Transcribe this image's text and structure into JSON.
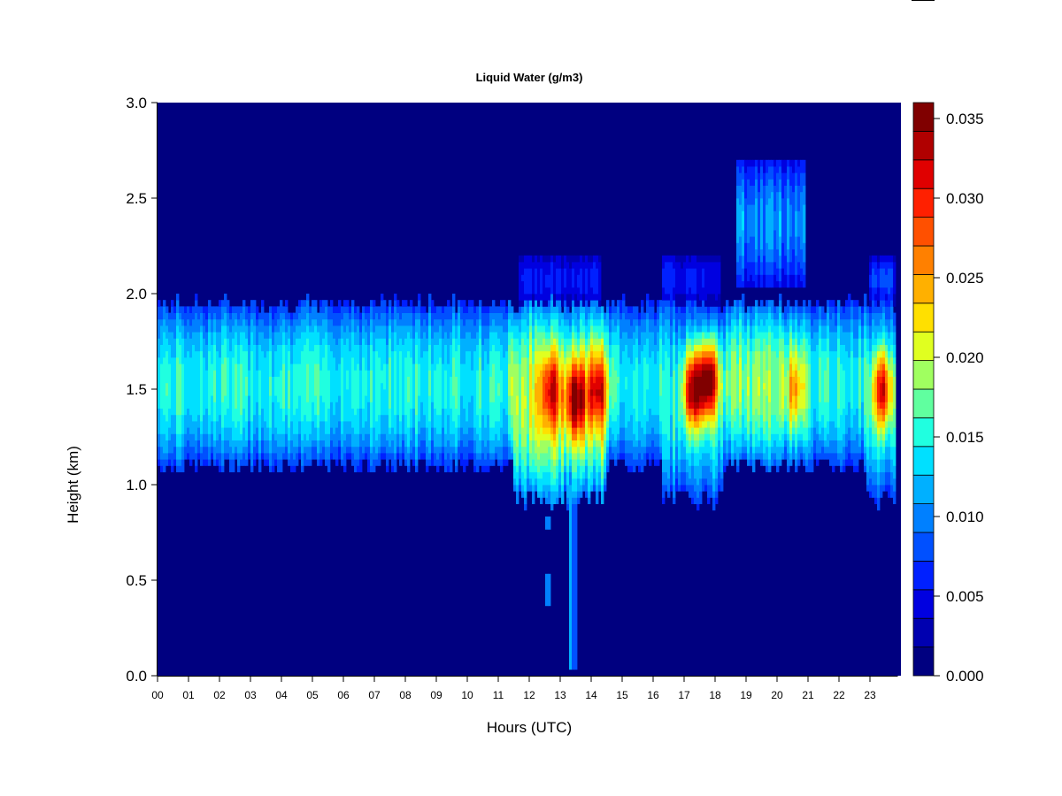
{
  "chart_data": {
    "type": "heatmap",
    "title": "Liquid Water (g/m3)",
    "xlabel": "Hours (UTC)",
    "ylabel": "Height (km)",
    "xlim": [
      0,
      24
    ],
    "ylim": [
      0.0,
      3.0
    ],
    "x_ticks": [
      "00",
      "01",
      "02",
      "03",
      "04",
      "05",
      "06",
      "07",
      "08",
      "09",
      "10",
      "11",
      "12",
      "13",
      "14",
      "15",
      "16",
      "17",
      "18",
      "19",
      "20",
      "21",
      "22",
      "23"
    ],
    "y_ticks": [
      "0.0",
      "0.5",
      "1.0",
      "1.5",
      "2.0",
      "2.5",
      "3.0"
    ],
    "colorbar": {
      "range": [
        0.0,
        0.036
      ],
      "tick_values": [
        0.0,
        0.005,
        0.01,
        0.015,
        0.02,
        0.025,
        0.03,
        0.035
      ],
      "tick_labels": [
        "0.000",
        "0.005",
        "0.010",
        "0.015",
        "0.020",
        "0.025",
        "0.030",
        "0.035"
      ],
      "colors": [
        "#000080",
        "#0000b0",
        "#0000e0",
        "#0020ff",
        "#0050ff",
        "#0080ff",
        "#00b0ff",
        "#00e0ff",
        "#20ffe0",
        "#60ff9f",
        "#a0ff60",
        "#e0ff20",
        "#ffe000",
        "#ffb000",
        "#ff8000",
        "#ff5000",
        "#ff2000",
        "#e00000",
        "#b00000",
        "#800000"
      ]
    },
    "cloud_layers": [
      {
        "name": "main",
        "start_hour": 0.0,
        "end_hour": 23.8,
        "base_km": 1.1,
        "top_km": 1.95,
        "peak_km": 1.5,
        "lwc_peak": 0.015
      },
      {
        "name": "upper",
        "start_hour": 11.7,
        "end_hour": 14.3,
        "base_km": 1.95,
        "top_km": 2.2,
        "lwc_peak": 0.006
      },
      {
        "name": "upper",
        "start_hour": 16.3,
        "end_hour": 18.2,
        "base_km": 1.95,
        "top_km": 2.2,
        "lwc_peak": 0.006
      },
      {
        "name": "upper",
        "start_hour": 18.7,
        "end_hour": 20.9,
        "base_km": 2.05,
        "top_km": 2.7,
        "lwc_peak": 0.011
      },
      {
        "name": "upper",
        "start_hour": 23.0,
        "end_hour": 23.8,
        "base_km": 1.95,
        "top_km": 2.2,
        "lwc_peak": 0.007
      }
    ],
    "maxima": [
      {
        "hour": 12.7,
        "height_km": 1.5,
        "lwc": 0.027
      },
      {
        "hour": 13.5,
        "height_km": 1.45,
        "lwc": 0.032
      },
      {
        "hour": 14.2,
        "height_km": 1.5,
        "lwc": 0.028
      },
      {
        "hour": 17.3,
        "height_km": 1.5,
        "lwc": 0.034
      },
      {
        "hour": 17.8,
        "height_km": 1.55,
        "lwc": 0.036
      },
      {
        "hour": 20.6,
        "height_km": 1.5,
        "lwc": 0.022
      },
      {
        "hour": 23.4,
        "height_km": 1.5,
        "lwc": 0.031
      }
    ],
    "precipitation_shaft": {
      "hour": 13.4,
      "from_km": 0.05,
      "to_km": 1.0,
      "lwc": 0.012
    }
  }
}
